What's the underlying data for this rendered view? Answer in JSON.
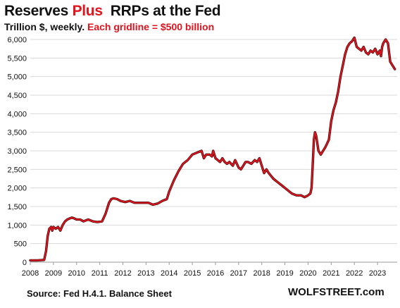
{
  "title": {
    "part1": "Reserves ",
    "part2": "Plus",
    "part3": "  RRPs at the Fed"
  },
  "subtitle": {
    "part1": "Trillion $, weekly. ",
    "part2": "Each gridline = $500 billion"
  },
  "footer": {
    "source": "Source: Fed H.4.1. Balance Sheet",
    "brand": "WOLFSTREET.com"
  },
  "colors": {
    "line": "#e0141e",
    "line_shadow": "#3a0a0a",
    "grid": "#d9d9d9",
    "axis": "#999999",
    "title_accent": "#e0141e"
  },
  "chart_data": {
    "type": "line",
    "title": "Reserves Plus RRPs at the Fed",
    "subtitle": "Trillion $, weekly. Each gridline = $500 billion",
    "xlabel": "",
    "ylabel": "",
    "xlim": [
      2008.0,
      2023.85
    ],
    "ylim": [
      0,
      6000
    ],
    "grid": true,
    "x_ticks": [
      2008,
      2009,
      2010,
      2011,
      2012,
      2013,
      2014,
      2015,
      2016,
      2017,
      2018,
      2019,
      2020,
      2021,
      2022,
      2023
    ],
    "x_tick_labels": [
      "2008",
      "2009",
      "2010",
      "2011",
      "2012",
      "2013",
      "2014",
      "2015",
      "2016",
      "2017",
      "2018",
      "2019",
      "2020",
      "2021",
      "2022",
      "2023"
    ],
    "y_ticks": [
      0,
      500,
      1000,
      1500,
      2000,
      2500,
      3000,
      3500,
      4000,
      4500,
      5000,
      5500,
      6000
    ],
    "y_tick_labels": [
      "0",
      "500",
      "1,000",
      "1,500",
      "2,000",
      "2,500",
      "3,000",
      "3,500",
      "4,000",
      "4,500",
      "5,000",
      "5,500",
      "6,000"
    ],
    "series": [
      {
        "x": [
          2008.0,
          2008.3,
          2008.6,
          2008.68,
          2008.75,
          2008.82,
          2008.9,
          2008.95,
          2009.0,
          2009.1,
          2009.2,
          2009.3,
          2009.4,
          2009.5,
          2009.6,
          2009.7,
          2009.8,
          2009.9,
          2010.0,
          2010.15,
          2010.3,
          2010.5,
          2010.7,
          2010.9,
          2011.1,
          2011.25,
          2011.4,
          2011.5,
          2011.6,
          2011.75,
          2011.9,
          2012.1,
          2012.3,
          2012.5,
          2012.7,
          2012.9,
          2013.1,
          2013.3,
          2013.5,
          2013.7,
          2013.9,
          2014.0,
          2014.2,
          2014.4,
          2014.6,
          2014.8,
          2015.0,
          2015.2,
          2015.4,
          2015.5,
          2015.6,
          2015.75,
          2015.85,
          2015.9,
          2016.0,
          2016.1,
          2016.2,
          2016.3,
          2016.4,
          2016.5,
          2016.6,
          2016.75,
          2016.85,
          2017.0,
          2017.1,
          2017.2,
          2017.3,
          2017.4,
          2017.55,
          2017.7,
          2017.8,
          2017.9,
          2018.0,
          2018.1,
          2018.2,
          2018.3,
          2018.5,
          2018.7,
          2018.9,
          2019.1,
          2019.3,
          2019.5,
          2019.7,
          2019.85,
          2020.0,
          2020.1,
          2020.15,
          2020.2,
          2020.25,
          2020.3,
          2020.35,
          2020.45,
          2020.55,
          2020.65,
          2020.75,
          2020.9,
          2021.0,
          2021.1,
          2021.2,
          2021.3,
          2021.4,
          2021.5,
          2021.6,
          2021.7,
          2021.8,
          2021.9,
          2022.0,
          2022.1,
          2022.2,
          2022.3,
          2022.4,
          2022.5,
          2022.6,
          2022.7,
          2022.8,
          2022.9,
          2023.0,
          2023.1,
          2023.15,
          2023.2,
          2023.25,
          2023.35,
          2023.45,
          2023.55,
          2023.65,
          2023.75
        ],
        "y": [
          50,
          50,
          60,
          300,
          700,
          900,
          950,
          850,
          950,
          900,
          950,
          850,
          1000,
          1100,
          1150,
          1180,
          1200,
          1180,
          1150,
          1150,
          1100,
          1150,
          1100,
          1080,
          1100,
          1300,
          1600,
          1700,
          1720,
          1700,
          1650,
          1620,
          1650,
          1600,
          1600,
          1600,
          1600,
          1550,
          1580,
          1650,
          1700,
          1900,
          2200,
          2450,
          2650,
          2750,
          2900,
          2950,
          3000,
          2800,
          2900,
          2900,
          2850,
          3000,
          2800,
          2750,
          2700,
          2800,
          2700,
          2650,
          2700,
          2600,
          2750,
          2550,
          2500,
          2600,
          2700,
          2700,
          2650,
          2750,
          2700,
          2800,
          2600,
          2400,
          2500,
          2400,
          2250,
          2150,
          2050,
          1950,
          1850,
          1800,
          1800,
          1750,
          1800,
          1850,
          2000,
          2600,
          3300,
          3500,
          3400,
          3000,
          2900,
          3000,
          3100,
          3300,
          3800,
          4100,
          4300,
          4600,
          5000,
          5300,
          5600,
          5800,
          5900,
          5950,
          6050,
          5800,
          5750,
          5700,
          5800,
          5650,
          5600,
          5700,
          5650,
          5750,
          5600,
          5700,
          5550,
          5800,
          5900,
          6000,
          5900,
          5400,
          5300,
          5200
        ]
      }
    ]
  }
}
